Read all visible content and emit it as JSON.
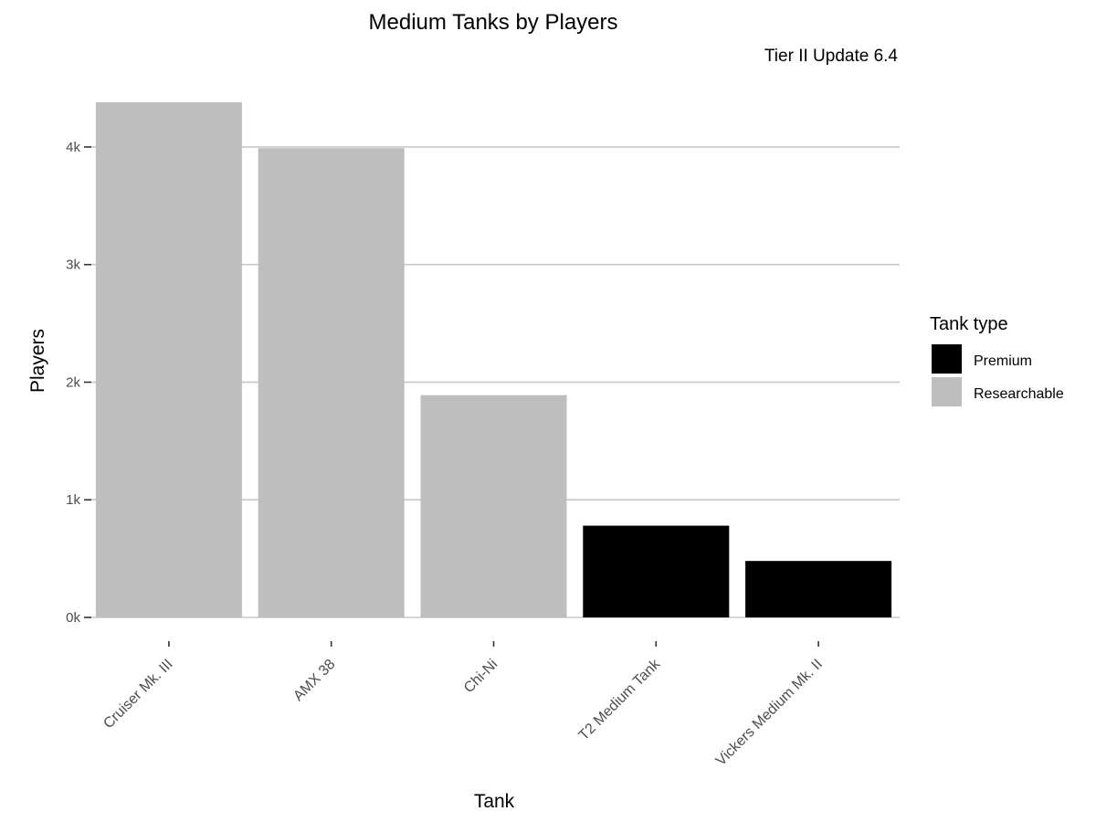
{
  "chart_data": {
    "type": "bar",
    "title": "Medium Tanks by Players",
    "subtitle": "Tier II Update 6.4",
    "xlabel": "Tank",
    "ylabel": "Players",
    "categories": [
      "Cruiser Mk. III",
      "AMX 38",
      "Chi-Ni",
      "T2 Medium Tank",
      "Vickers Medium Mk. II"
    ],
    "values": [
      4380,
      3990,
      1890,
      780,
      480
    ],
    "bar_types": [
      "Researchable",
      "Researchable",
      "Researchable",
      "Premium",
      "Premium"
    ],
    "ylim": [
      0,
      4380
    ],
    "y_ticks": [
      0,
      1000,
      2000,
      3000,
      4000
    ],
    "y_tick_labels": [
      "0k",
      "1k",
      "2k",
      "3k",
      "4k"
    ],
    "grid": true,
    "legend": {
      "title": "Tank type",
      "placement": "right",
      "entries": [
        {
          "label": "Premium",
          "color": "#000000"
        },
        {
          "label": "Researchable",
          "color": "#bebebe"
        }
      ]
    }
  }
}
